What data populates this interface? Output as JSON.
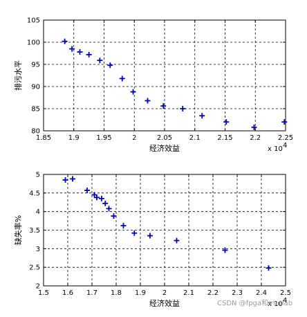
{
  "chart_data": [
    {
      "type": "scatter",
      "xlabel": "经济效益",
      "ylabel": "排污水平",
      "xlim": [
        18500,
        22500
      ],
      "ylim": [
        80,
        105
      ],
      "x_exponent_label": "x 10",
      "x_exponent_power": "4",
      "x_ticks": [
        18500,
        19000,
        19500,
        20000,
        20500,
        21000,
        21500,
        22000,
        22500
      ],
      "x_tick_labels": [
        "1.85",
        "1.9",
        "1.95",
        "2",
        "2.05",
        "2.1",
        "2.15",
        "2.2",
        "2.25"
      ],
      "y_ticks": [
        80,
        85,
        90,
        95,
        100,
        105
      ],
      "y_tick_labels": [
        "80",
        "85",
        "90",
        "95",
        "100",
        "105"
      ],
      "grid": true,
      "marker": "+",
      "color": "#0000b4",
      "points": [
        {
          "x": 18850,
          "y": 100.2
        },
        {
          "x": 18970,
          "y": 98.5
        },
        {
          "x": 19100,
          "y": 97.8
        },
        {
          "x": 19250,
          "y": 97.2
        },
        {
          "x": 19430,
          "y": 95.9
        },
        {
          "x": 19600,
          "y": 94.8
        },
        {
          "x": 19800,
          "y": 91.8
        },
        {
          "x": 19980,
          "y": 88.8
        },
        {
          "x": 20220,
          "y": 86.8
        },
        {
          "x": 20480,
          "y": 85.6
        },
        {
          "x": 20800,
          "y": 85.0
        },
        {
          "x": 21120,
          "y": 83.4
        },
        {
          "x": 21520,
          "y": 82.0
        },
        {
          "x": 21980,
          "y": 80.8
        },
        {
          "x": 22480,
          "y": 82.0
        }
      ]
    },
    {
      "type": "scatter",
      "xlabel": "经济效益",
      "ylabel": "缺失率%",
      "xlim": [
        1.5,
        2.5
      ],
      "ylim": [
        2,
        5
      ],
      "x_exponent_label": "x 10",
      "x_exponent_power": "4",
      "x_ticks": [
        1.5,
        1.6,
        1.7,
        1.8,
        1.9,
        2.0,
        2.1,
        2.2,
        2.3,
        2.4,
        2.5
      ],
      "x_tick_labels": [
        "1.5",
        "1.6",
        "1.7",
        "1.8",
        "1.9",
        "2",
        "2.1",
        "2.2",
        "2.3",
        "2.4",
        "2.5"
      ],
      "y_ticks": [
        2,
        2.5,
        3,
        3.5,
        4,
        4.5,
        5
      ],
      "y_tick_labels": [
        "2",
        "2.5",
        "3",
        "3.5",
        "4",
        "4.5",
        "5"
      ],
      "grid": true,
      "marker": "+",
      "color": "#0000b4",
      "points": [
        {
          "x": 1.59,
          "y": 4.85
        },
        {
          "x": 1.62,
          "y": 4.88
        },
        {
          "x": 1.68,
          "y": 4.57
        },
        {
          "x": 1.71,
          "y": 4.45
        },
        {
          "x": 1.72,
          "y": 4.38
        },
        {
          "x": 1.74,
          "y": 4.35
        },
        {
          "x": 1.755,
          "y": 4.22
        },
        {
          "x": 1.77,
          "y": 4.08
        },
        {
          "x": 1.79,
          "y": 3.88
        },
        {
          "x": 1.83,
          "y": 3.62
        },
        {
          "x": 1.875,
          "y": 3.42
        },
        {
          "x": 1.94,
          "y": 3.35
        },
        {
          "x": 2.05,
          "y": 3.22
        },
        {
          "x": 2.25,
          "y": 2.96
        },
        {
          "x": 2.43,
          "y": 2.48
        }
      ]
    }
  ],
  "watermark": "CSDN @fpga和matlab"
}
